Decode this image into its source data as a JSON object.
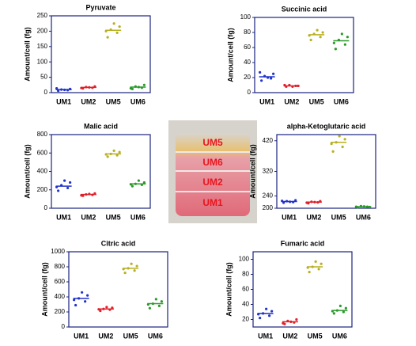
{
  "chart_data": [
    {
      "type": "dot",
      "title": "Pyruvate",
      "y_label": "Amount/cell (fg)",
      "categories": [
        "UM1",
        "UM2",
        "UM5",
        "UM6"
      ],
      "colors": [
        "#2233cc",
        "#e0202a",
        "#b8b020",
        "#2a9a2a"
      ],
      "ylim": [
        0,
        250
      ],
      "yticks": [
        0,
        50,
        100,
        150,
        200,
        250
      ],
      "means": [
        10,
        17,
        203,
        18
      ],
      "points": [
        [
          6,
          8,
          10,
          12,
          9,
          14
        ],
        [
          14,
          16,
          18,
          20,
          17,
          15
        ],
        [
          180,
          195,
          205,
          215,
          225,
          200
        ],
        [
          12,
          16,
          20,
          25,
          18,
          14
        ]
      ]
    },
    {
      "type": "dot",
      "title": "Succinic acid",
      "y_label": "Amount/cell (fg)",
      "categories": [
        "UM1",
        "UM2",
        "UM5",
        "UM6"
      ],
      "colors": [
        "#2233cc",
        "#e0202a",
        "#b8b020",
        "#2a9a2a"
      ],
      "ylim": [
        0,
        100
      ],
      "yticks": [
        0,
        20,
        40,
        60,
        80,
        100
      ],
      "means": [
        21,
        9,
        77,
        69
      ],
      "points": [
        [
          16,
          19,
          22,
          25,
          20,
          27
        ],
        [
          8,
          9,
          10,
          9,
          8,
          10
        ],
        [
          70,
          74,
          78,
          80,
          83,
          76
        ],
        [
          58,
          64,
          70,
          74,
          78,
          66
        ]
      ]
    },
    {
      "type": "dot",
      "title": "Malic acid",
      "y_label": "Amount/cell (fg)",
      "categories": [
        "UM1",
        "UM2",
        "UM5",
        "UM6"
      ],
      "colors": [
        "#2233cc",
        "#e0202a",
        "#b8b020",
        "#2a9a2a"
      ],
      "ylim": [
        0,
        800
      ],
      "yticks": [
        0,
        200,
        400,
        600,
        800
      ],
      "means": [
        240,
        150,
        590,
        265
      ],
      "points": [
        [
          190,
          220,
          250,
          280,
          300,
          230
        ],
        [
          135,
          145,
          150,
          160,
          155,
          140
        ],
        [
          560,
          575,
          590,
          610,
          625,
          585
        ],
        [
          240,
          255,
          265,
          280,
          300,
          260
        ]
      ]
    },
    {
      "type": "dot",
      "title": "alpha-Ketoglutaric  acid",
      "y_label": "Amount/cell (fg)",
      "categories": [
        "UM1",
        "UM2",
        "UM5",
        "UM6"
      ],
      "colors": [
        "#2233cc",
        "#e0202a",
        "#b8b020",
        "#2a9a2a"
      ],
      "ylim": [
        200,
        440
      ],
      "yticks": [
        200,
        240,
        320,
        420
      ],
      "means": [
        222,
        220,
        415,
        205
      ],
      "points": [
        [
          218,
          220,
          223,
          226,
          221,
          224
        ],
        [
          216,
          219,
          221,
          223,
          220,
          218
        ],
        [
          385,
          400,
          415,
          425,
          435,
          410
        ],
        [
          203,
          205,
          207,
          204,
          206,
          205
        ]
      ]
    },
    {
      "type": "dot",
      "title": "Citric acid",
      "y_label": "Amount/cell (fg)",
      "categories": [
        "UM1",
        "UM2",
        "UM5",
        "UM6"
      ],
      "colors": [
        "#2233cc",
        "#e0202a",
        "#b8b020",
        "#2a9a2a"
      ],
      "ylim": [
        0,
        1000
      ],
      "yticks": [
        0,
        200,
        400,
        600,
        800,
        1000
      ],
      "means": [
        380,
        240,
        780,
        310
      ],
      "points": [
        [
          290,
          340,
          380,
          420,
          460,
          360
        ],
        [
          215,
          230,
          240,
          255,
          265,
          235
        ],
        [
          720,
          750,
          780,
          810,
          840,
          770
        ],
        [
          250,
          280,
          310,
          340,
          370,
          300
        ]
      ]
    },
    {
      "type": "dot",
      "title": "Fumaric acid",
      "y_label": "Amount/cell (fg)",
      "categories": [
        "UM1",
        "UM2",
        "UM5",
        "UM6"
      ],
      "colors": [
        "#2233cc",
        "#e0202a",
        "#b8b020",
        "#2a9a2a"
      ],
      "ylim": [
        10,
        110
      ],
      "yticks": [
        20,
        40,
        60,
        80,
        100
      ],
      "means": [
        28,
        17,
        90,
        32
      ],
      "points": [
        [
          22,
          25,
          28,
          31,
          34,
          27
        ],
        [
          14,
          16,
          18,
          20,
          17,
          15
        ],
        [
          83,
          87,
          90,
          94,
          97,
          89
        ],
        [
          28,
          30,
          32,
          35,
          38,
          31
        ]
      ]
    }
  ],
  "photo": {
    "labels": [
      "UM5",
      "UM6",
      "UM2",
      "UM1"
    ]
  }
}
